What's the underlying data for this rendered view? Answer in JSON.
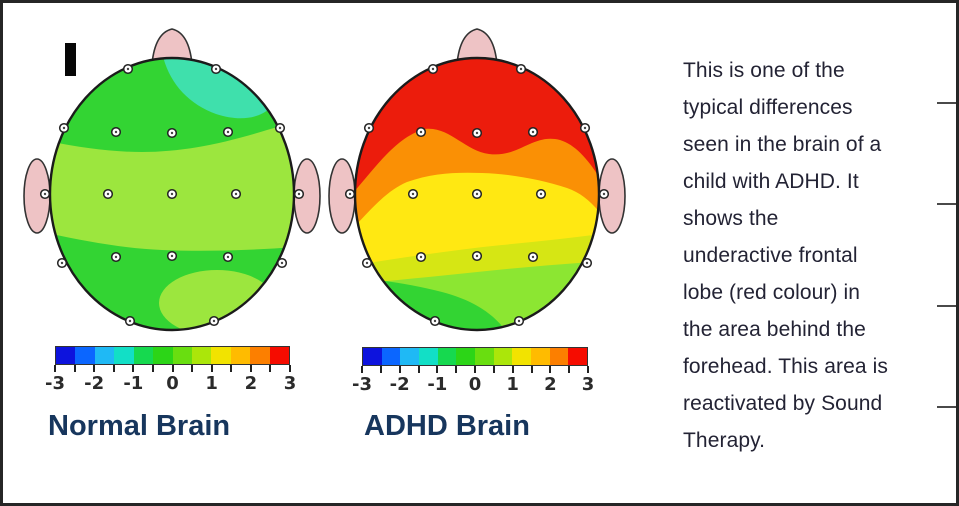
{
  "panels": {
    "normal": {
      "label": "Normal Brain"
    },
    "adhd": {
      "label": "ADHD Brain"
    }
  },
  "colorbar": {
    "min": -3,
    "max": 3,
    "tick_labels": [
      "-3",
      "-2",
      "-1",
      "0",
      "1",
      "2",
      "3"
    ],
    "segments": [
      "#0d13dd",
      "#0b66ff",
      "#1fb9f5",
      "#12dfc6",
      "#16d94f",
      "#2cd517",
      "#69de10",
      "#abe60a",
      "#f2e300",
      "#ffbb00",
      "#fc7f00",
      "#f60c00"
    ]
  },
  "electrodes": {
    "count": 19,
    "positions": [
      [
        "Fp1",
        106,
        47
      ],
      [
        "Fp2",
        194,
        47
      ],
      [
        "F7",
        42,
        106
      ],
      [
        "F3",
        94,
        110
      ],
      [
        "Fz",
        150,
        111
      ],
      [
        "F4",
        206,
        110
      ],
      [
        "F8",
        258,
        106
      ],
      [
        "T3",
        23,
        172
      ],
      [
        "C3",
        86,
        172
      ],
      [
        "Cz",
        150,
        172
      ],
      [
        "C4",
        214,
        172
      ],
      [
        "T4",
        277,
        172
      ],
      [
        "T5",
        40,
        241
      ],
      [
        "P3",
        94,
        235
      ],
      [
        "Pz",
        150,
        234
      ],
      [
        "P4",
        206,
        235
      ],
      [
        "T6",
        260,
        241
      ],
      [
        "O1",
        108,
        299
      ],
      [
        "O2",
        192,
        299
      ]
    ]
  },
  "description": {
    "lines": [
      "This is one of the",
      "typical differences",
      "seen in the brain of a",
      "child with ADHD. It",
      "shows the",
      "underactive frontal",
      "lobe (red colour) in",
      "the area behind the",
      "forehead. This area is",
      "reactivated by Sound",
      "Therapy."
    ],
    "text": "This is one of the typical differences seen in the brain of a child with ADHD. It shows the underactive frontal lobe (red colour) in the area behind the forehead. This area is reactivated by Sound Therapy."
  },
  "colors": {
    "label_text": "#17365d",
    "body_text": "#232334",
    "skin": "#eec3c5",
    "green": "#33d433",
    "lightgreen": "#9ce63e",
    "teal": "#3fe0ac",
    "red": "#ec1c0c",
    "orange": "#fa9005",
    "yellow": "#ffe812",
    "yellowgreen": "#d6e614",
    "lightgreen2": "#8ce632",
    "outline": "#1b1b1b"
  }
}
